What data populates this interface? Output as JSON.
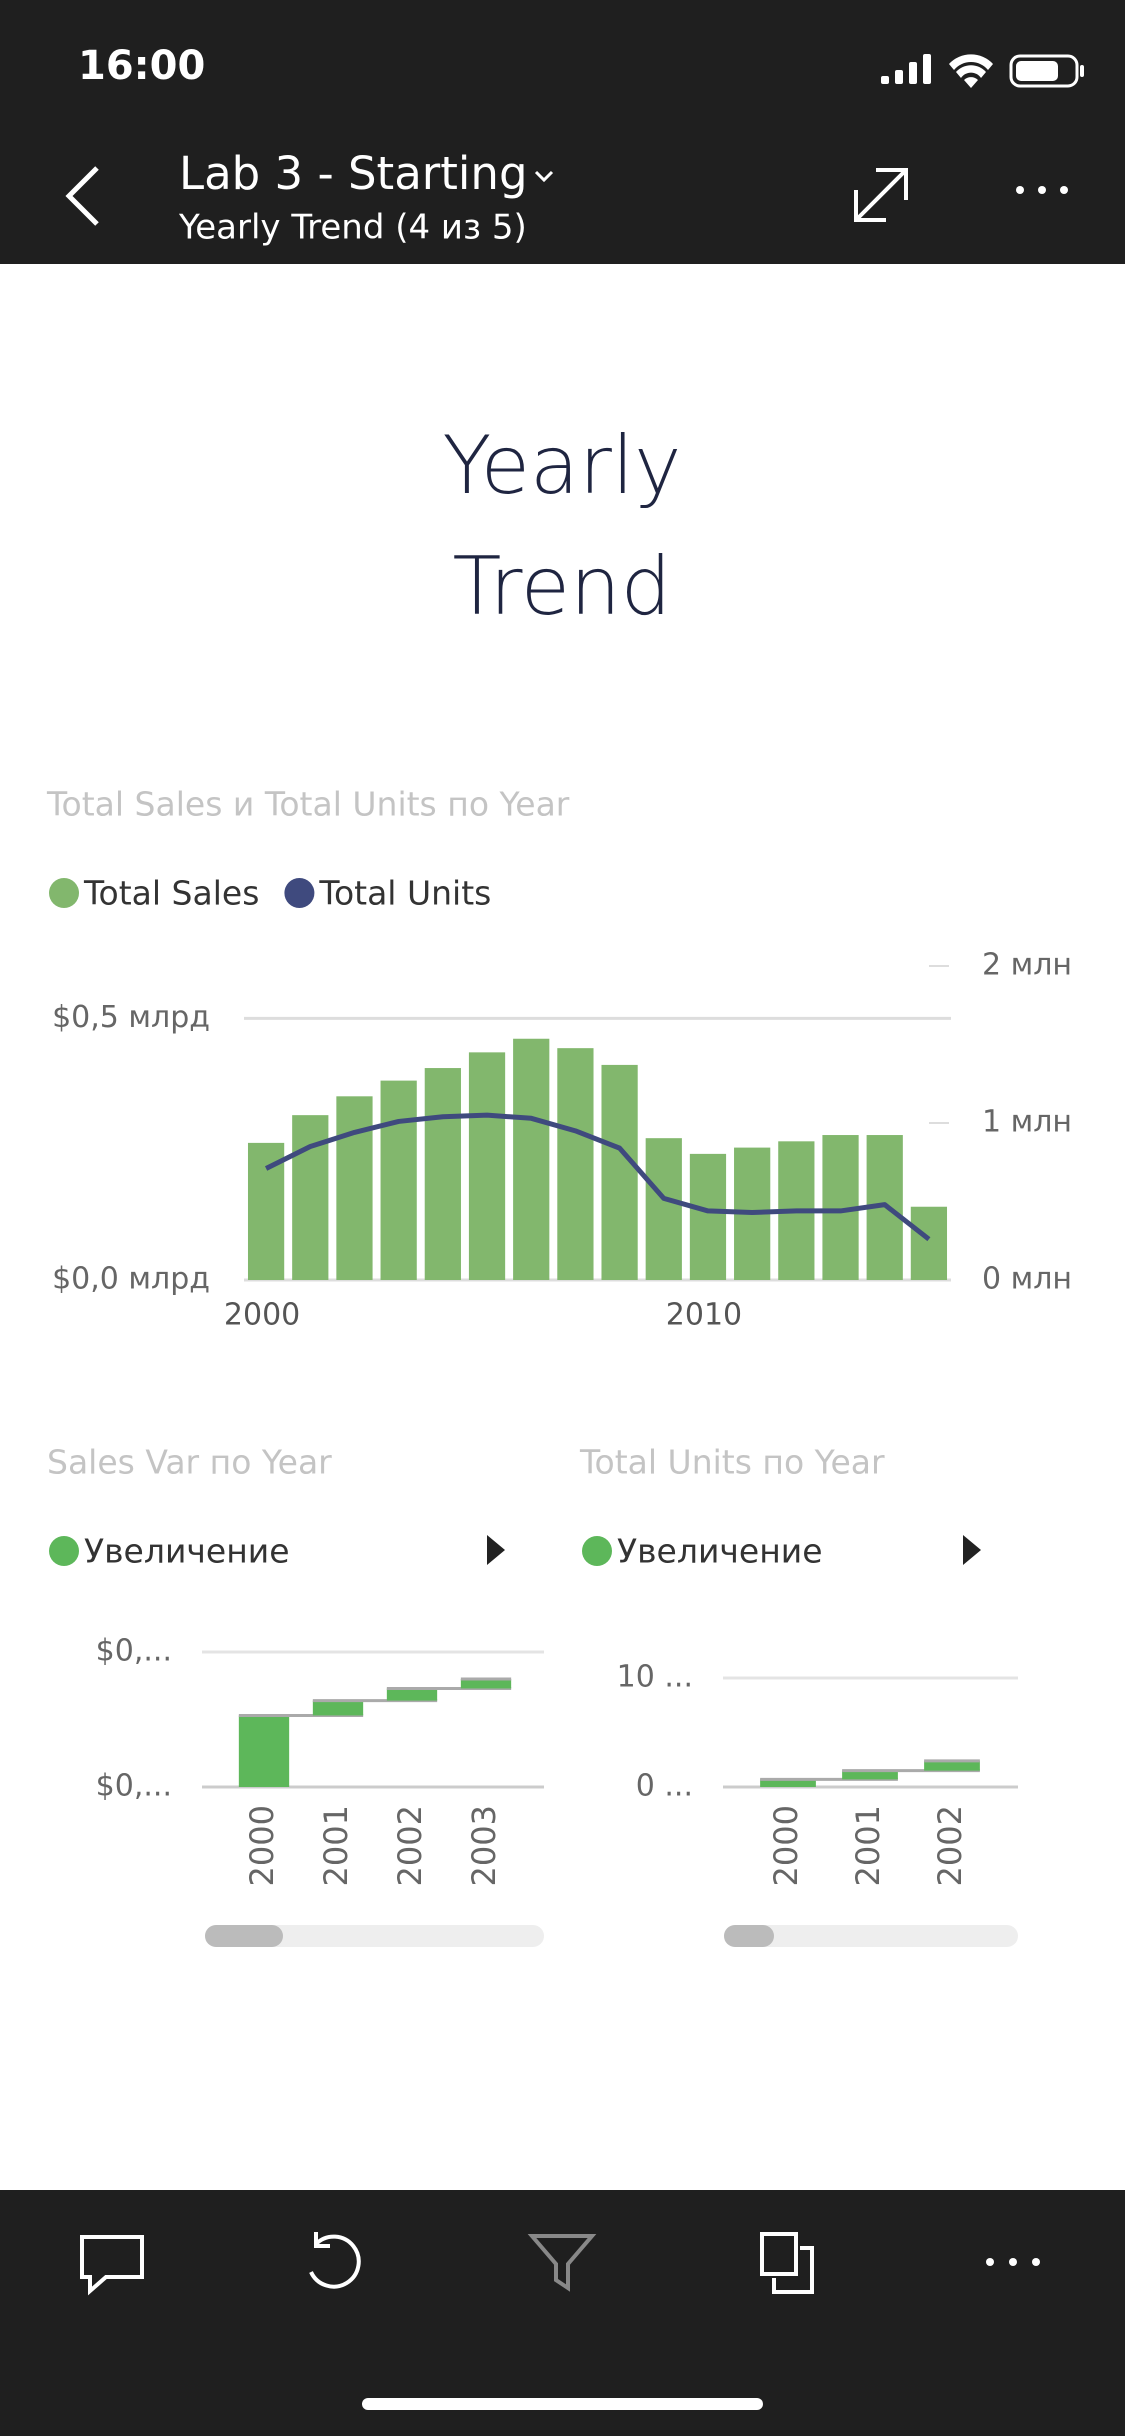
{
  "status_bar": {
    "time": "16:00"
  },
  "header": {
    "title": "Lab 3 - Starting",
    "subtitle": "Yearly Trend (4 из 5)"
  },
  "page_title": "Yearly Trend",
  "chart_data": [
    {
      "type": "combo",
      "title": "Total Sales и Total Units по Year",
      "x": [
        2000,
        2001,
        2002,
        2003,
        2004,
        2005,
        2006,
        2007,
        2008,
        2009,
        2010,
        2011,
        2012,
        2013,
        2014,
        2015
      ],
      "xlim": [
        1999.5,
        2015.5
      ],
      "xticks": [
        2000,
        2010
      ],
      "ylim": [
        0,
        0.6
      ],
      "yticks": [
        {
          "value": 0,
          "label": "$0,0 млрд"
        },
        {
          "value": 0.5,
          "label": "$0,5 млрд"
        }
      ],
      "y2lim": [
        0,
        2
      ],
      "y2ticks": [
        {
          "value": 0,
          "label": "0 млн"
        },
        {
          "value": 1,
          "label": "1 млн"
        },
        {
          "value": 2,
          "label": "2 млн"
        }
      ],
      "grid": true,
      "series": [
        {
          "name": "Total Sales",
          "type": "bar",
          "color": "#82b76d",
          "values": [
            0.262,
            0.315,
            0.351,
            0.381,
            0.405,
            0.435,
            0.461,
            0.443,
            0.411,
            0.271,
            0.241,
            0.253,
            0.265,
            0.277,
            0.277,
            0.14
          ]
        },
        {
          "name": "Total Units",
          "type": "line",
          "axis": "y2",
          "color": "#3f4a7e",
          "values": [
            0.71,
            0.85,
            0.94,
            1.01,
            1.04,
            1.05,
            1.03,
            0.95,
            0.84,
            0.52,
            0.44,
            0.43,
            0.44,
            0.44,
            0.48,
            0.26
          ]
        }
      ]
    },
    {
      "type": "waterfall",
      "title": "Sales Var по Year",
      "categories": [
        "2000",
        "2001",
        "2002",
        "2003"
      ],
      "ylim": [
        0,
        0.1
      ],
      "yticks": [
        {
          "value": 0,
          "label": "$0,..."
        },
        {
          "value": 0.1,
          "label": "$0,..."
        }
      ],
      "series": [
        {
          "name": "Увеличение",
          "color": "#5db75a",
          "values": [
            0.053,
            0.011,
            0.009,
            0.007
          ]
        }
      ]
    },
    {
      "type": "waterfall",
      "title": "Total Units по Year",
      "categories": [
        "2000",
        "2001",
        "2002"
      ],
      "ylim": [
        0,
        10
      ],
      "yticks": [
        {
          "value": 0,
          "label": "0 ..."
        },
        {
          "value": 10,
          "label": "10 ..."
        }
      ],
      "series": [
        {
          "name": "Увеличение",
          "color": "#5db75a",
          "values": [
            0.7,
            0.8,
            0.9
          ]
        }
      ]
    }
  ]
}
